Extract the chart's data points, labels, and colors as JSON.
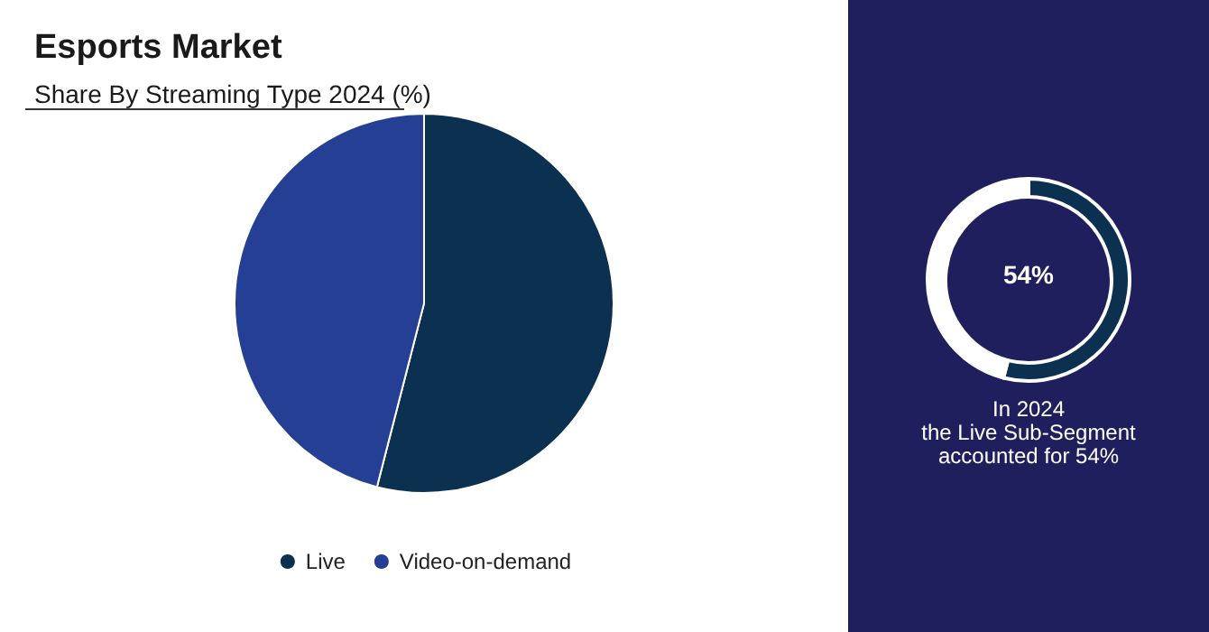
{
  "chart_data": [
    {
      "type": "pie",
      "title": "Esports Market",
      "subtitle": "Share By Streaming Type 2024 (%)",
      "categories": [
        "Live",
        "Video-on-demand"
      ],
      "values": [
        54,
        46
      ],
      "colors": [
        "#0b3050",
        "#243f94"
      ],
      "legend": "bottom"
    },
    {
      "type": "donut",
      "categories": [
        null,
        null
      ],
      "values": [
        54,
        46
      ],
      "colors": [
        "#0b3050",
        "#ffffff"
      ],
      "annotations": [
        "54%",
        "In 2024\nthe Live Sub-Segment\naccounted for 54%"
      ]
    }
  ]
}
